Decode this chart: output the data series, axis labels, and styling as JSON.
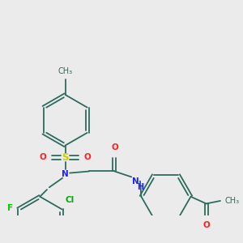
{
  "bg_color": "#ebebeb",
  "bond_color": "#2d6b5e",
  "bond_width": 1.3,
  "atom_colors": {
    "N": "#2020ff",
    "O": "#ff2020",
    "S": "#cccc00",
    "F": "#00cc00",
    "Cl": "#00aa00",
    "C": "#2d6b5e",
    "H": "#2d6b5e"
  },
  "font_size": 7.5
}
